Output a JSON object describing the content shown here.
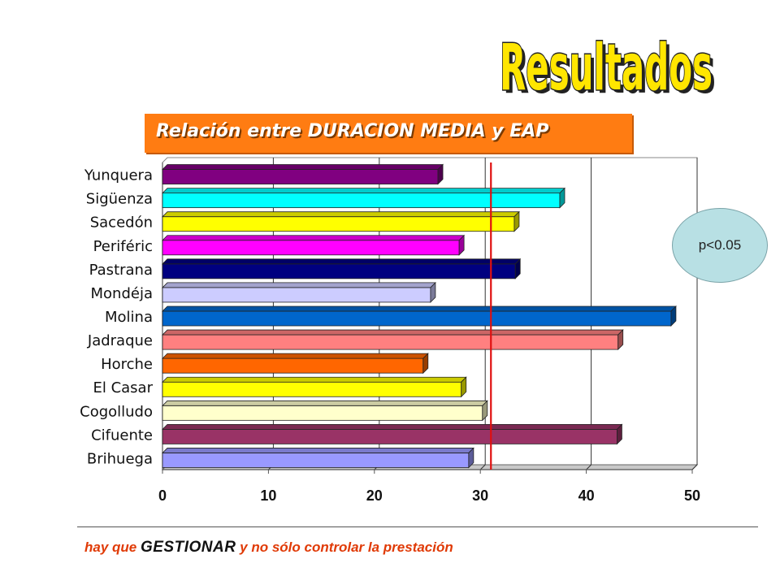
{
  "slide": {
    "title": "Resultados",
    "subtitle": "Relación entre DURACION MEDIA y EAP",
    "pvalue": "p<0.05",
    "footer_before": "hay que ",
    "footer_emphasis": "GESTIONAR",
    "footer_after": " y no sólo controlar la prestación"
  },
  "chart_data": {
    "type": "bar",
    "orientation": "horizontal",
    "categories": [
      "Yunquera",
      "Sigüenza",
      "Sacedón",
      "Periféric",
      "Pastrana",
      "Mondéja",
      "Molina",
      "Jadraque",
      "Horche",
      "El Casar",
      "Cogolludo",
      "Cifuente",
      "Brihuega"
    ],
    "values": [
      26.0,
      37.5,
      33.2,
      28.0,
      33.3,
      25.3,
      48.0,
      43.0,
      24.6,
      28.2,
      30.2,
      42.9,
      28.9
    ],
    "colors": [
      "#800080",
      "#00ffff",
      "#ffff00",
      "#ff00ff",
      "#000080",
      "#ccccff",
      "#0066cc",
      "#ff8080",
      "#ff6600",
      "#ffff00",
      "#ffffcc",
      "#993366",
      "#9999ff"
    ],
    "reference_line": 31,
    "reference_color": "#e01010",
    "xlim": [
      0,
      50
    ],
    "xticks": [
      0,
      10,
      20,
      30,
      40,
      50
    ],
    "grid": true
  }
}
